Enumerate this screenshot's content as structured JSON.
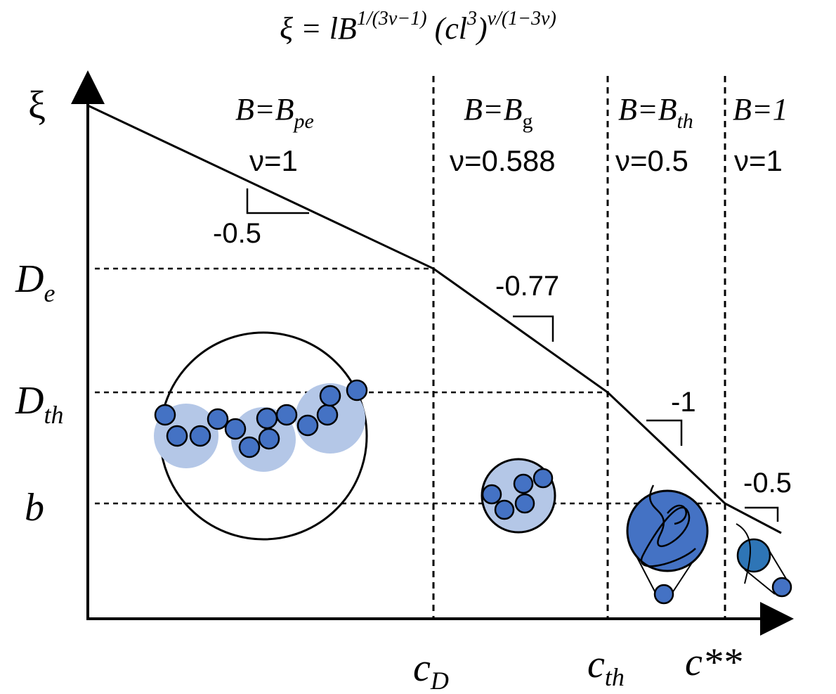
{
  "title": {
    "parts": [
      "ξ = lB",
      "1/(3ν−1)",
      " (cl",
      "3",
      ")",
      "ν/(1−3ν)"
    ]
  },
  "y_axis": {
    "label": "ξ",
    "levels": [
      {
        "main": "D",
        "sub": "e"
      },
      {
        "main": "D",
        "sub": "th"
      },
      {
        "main": "b"
      }
    ]
  },
  "x_axis": {
    "marks": [
      {
        "main": "c",
        "sub": "D"
      },
      {
        "main": "c",
        "sub": "th"
      },
      {
        "main": "c**"
      }
    ]
  },
  "regions": [
    {
      "B": "B=B",
      "B_sub": "pe",
      "nu": "ν=1",
      "slope": "-0.5"
    },
    {
      "B": "B=B",
      "B_sub": "g",
      "nu": "ν=0.588",
      "slope": "-0.77"
    },
    {
      "B": "B=B",
      "B_sub": "th",
      "nu": "ν=0.5",
      "slope": "-1"
    },
    {
      "B": "B=1",
      "nu": "ν=1",
      "slope": "-0.5"
    }
  ]
}
